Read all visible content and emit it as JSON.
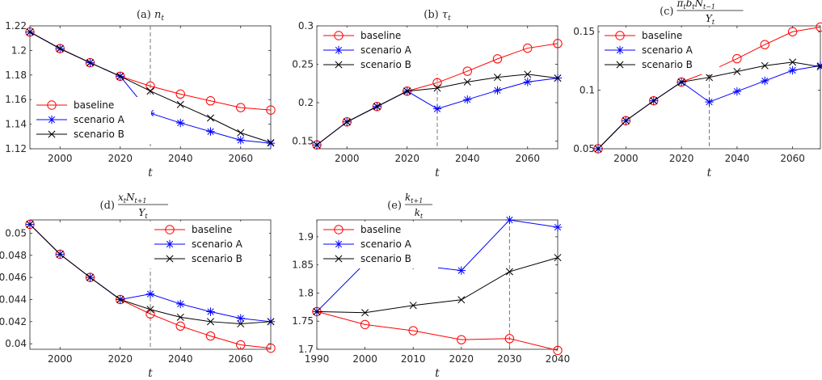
{
  "chart_data": [
    {
      "type": "line",
      "title": "(a) n_t",
      "title_prefix": "(a)",
      "title_math": "n",
      "title_sub": "t",
      "xlabel": "t",
      "ylabel": "",
      "x": [
        1990,
        2000,
        2010,
        2020,
        2030,
        2040,
        2050,
        2060,
        2070
      ],
      "xlim": [
        1990,
        2070
      ],
      "ylim": [
        1.12,
        1.22
      ],
      "xticks": [
        2000,
        2020,
        2040,
        2060
      ],
      "yticks": [
        1.12,
        1.14,
        1.16,
        1.18,
        1.2,
        1.22
      ],
      "ytick_labels": [
        "1.12",
        "1.14",
        "1.16",
        "1.18",
        "1.2",
        "1.22"
      ],
      "vline": 2030,
      "legend": "lower-left",
      "series": [
        {
          "name": "baseline",
          "color": "#ff0000",
          "marker": "circle",
          "values": [
            1.215,
            1.2015,
            1.19,
            1.179,
            1.171,
            1.1645,
            1.159,
            1.1535,
            1.1515
          ]
        },
        {
          "name": "scenario A",
          "color": "#0000ff",
          "marker": "asterisk",
          "values": [
            1.215,
            1.2015,
            1.19,
            1.179,
            1.149,
            1.141,
            1.134,
            1.127,
            1.1245
          ]
        },
        {
          "name": "scenario B",
          "color": "#000000",
          "marker": "cross",
          "values": [
            1.215,
            1.2015,
            1.19,
            1.179,
            1.167,
            1.156,
            1.145,
            1.133,
            1.125
          ]
        }
      ]
    },
    {
      "type": "line",
      "title": "(b) τ_t",
      "title_prefix": "(b)",
      "title_math": "τ",
      "title_sub": "t",
      "xlabel": "t",
      "ylabel": "",
      "x": [
        1990,
        2000,
        2010,
        2020,
        2030,
        2040,
        2050,
        2060,
        2070
      ],
      "xlim": [
        1990,
        2070
      ],
      "ylim": [
        0.14,
        0.3
      ],
      "xticks": [
        2000,
        2020,
        2040,
        2060
      ],
      "yticks": [
        0.15,
        0.2,
        0.25,
        0.3
      ],
      "ytick_labels": [
        "0.15",
        "0.2",
        "0.25",
        "0.3"
      ],
      "vline": 2030,
      "legend": "top-left",
      "series": [
        {
          "name": "baseline",
          "color": "#ff0000",
          "marker": "circle",
          "values": [
            0.145,
            0.175,
            0.195,
            0.215,
            0.226,
            0.241,
            0.257,
            0.271,
            0.277
          ]
        },
        {
          "name": "scenario A",
          "color": "#0000ff",
          "marker": "asterisk",
          "values": [
            0.145,
            0.175,
            0.195,
            0.215,
            0.192,
            0.204,
            0.216,
            0.227,
            0.232
          ]
        },
        {
          "name": "scenario B",
          "color": "#000000",
          "marker": "cross",
          "values": [
            0.145,
            0.175,
            0.195,
            0.215,
            0.219,
            0.227,
            0.233,
            0.237,
            0.232
          ]
        }
      ]
    },
    {
      "type": "line",
      "title": "(c) π_t b_t N_{t−1} / Y_t",
      "title_prefix": "(c)",
      "title_num": "π",
      "title_num_parts": [
        "π",
        "t",
        "b",
        "t",
        "N",
        "t−1"
      ],
      "title_den": "Y",
      "title_den_sub": "t",
      "xlabel": "t",
      "ylabel": "",
      "x": [
        1990,
        2000,
        2010,
        2020,
        2030,
        2040,
        2050,
        2060,
        2070
      ],
      "xlim": [
        1990,
        2070
      ],
      "ylim": [
        0.05,
        0.155
      ],
      "xticks": [
        2000,
        2020,
        2040,
        2060
      ],
      "yticks": [
        0.05,
        0.1,
        0.15
      ],
      "ytick_labels": [
        "0.05",
        "0.1",
        "0.15"
      ],
      "vline": 2030,
      "legend": "top-left",
      "series": [
        {
          "name": "baseline",
          "color": "#ff0000",
          "marker": "circle",
          "values": [
            0.05,
            0.074,
            0.091,
            0.107,
            0.116,
            0.127,
            0.139,
            0.15,
            0.154
          ]
        },
        {
          "name": "scenario A",
          "color": "#0000ff",
          "marker": "asterisk",
          "values": [
            0.05,
            0.074,
            0.091,
            0.107,
            0.09,
            0.099,
            0.108,
            0.117,
            0.121
          ]
        },
        {
          "name": "scenario B",
          "color": "#000000",
          "marker": "cross",
          "values": [
            0.05,
            0.074,
            0.091,
            0.107,
            0.111,
            0.116,
            0.121,
            0.124,
            0.12
          ]
        }
      ]
    },
    {
      "type": "line",
      "title": "(d) x_t N_{t+1} / Y_t",
      "title_prefix": "(d)",
      "title_num_parts": [
        "x",
        "t",
        "N",
        "t+1"
      ],
      "title_den": "Y",
      "title_den_sub": "t",
      "xlabel": "t",
      "ylabel": "",
      "x": [
        1990,
        2000,
        2010,
        2020,
        2030,
        2040,
        2050,
        2060,
        2070
      ],
      "xlim": [
        1990,
        2070
      ],
      "ylim": [
        0.0395,
        0.0512
      ],
      "xticks": [
        2000,
        2020,
        2040,
        2060
      ],
      "yticks": [
        0.04,
        0.042,
        0.044,
        0.046,
        0.048,
        0.05
      ],
      "ytick_labels": [
        "0.04",
        "0.042",
        "0.044",
        "0.046",
        "0.048",
        "0.05"
      ],
      "vline": 2030,
      "legend": "top-right",
      "series": [
        {
          "name": "baseline",
          "color": "#ff0000",
          "marker": "circle",
          "values": [
            0.0508,
            0.0481,
            0.046,
            0.044,
            0.0427,
            0.0416,
            0.0407,
            0.0399,
            0.0396
          ]
        },
        {
          "name": "scenario A",
          "color": "#0000ff",
          "marker": "asterisk",
          "values": [
            0.0508,
            0.0481,
            0.046,
            0.044,
            0.0445,
            0.0436,
            0.0429,
            0.0423,
            0.042
          ]
        },
        {
          "name": "scenario B",
          "color": "#000000",
          "marker": "cross",
          "values": [
            0.0508,
            0.0481,
            0.046,
            0.044,
            0.0431,
            0.0424,
            0.042,
            0.0418,
            0.042
          ]
        }
      ]
    },
    {
      "type": "line",
      "title": "(e) k_{t+1} / k_t",
      "title_prefix": "(e)",
      "title_num_parts": [
        "k",
        "t+1"
      ],
      "title_den": "k",
      "title_den_sub": "t",
      "xlabel": "t",
      "ylabel": "",
      "x": [
        1990,
        2000,
        2010,
        2020,
        2030,
        2040
      ],
      "xlim": [
        1990,
        2040
      ],
      "ylim": [
        1.7,
        1.93
      ],
      "xticks": [
        1990,
        2000,
        2010,
        2020,
        2030,
        2040
      ],
      "yticks": [
        1.7,
        1.75,
        1.8,
        1.85,
        1.9
      ],
      "ytick_labels": [
        "1.7",
        "1.75",
        "1.8",
        "1.85",
        "1.9"
      ],
      "vline": 2030,
      "legend": "top-left",
      "series": [
        {
          "name": "baseline",
          "color": "#ff0000",
          "marker": "circle",
          "values": [
            1.767,
            1.744,
            1.733,
            1.717,
            1.719,
            1.698
          ]
        },
        {
          "name": "scenario A",
          "color": "#0000ff",
          "marker": "asterisk",
          "values": [
            1.767,
            1.853,
            1.85,
            1.84,
            1.93,
            1.917
          ]
        },
        {
          "name": "scenario B",
          "color": "#000000",
          "marker": "cross",
          "values": [
            1.767,
            1.765,
            1.778,
            1.788,
            1.838,
            1.863
          ]
        }
      ]
    }
  ]
}
